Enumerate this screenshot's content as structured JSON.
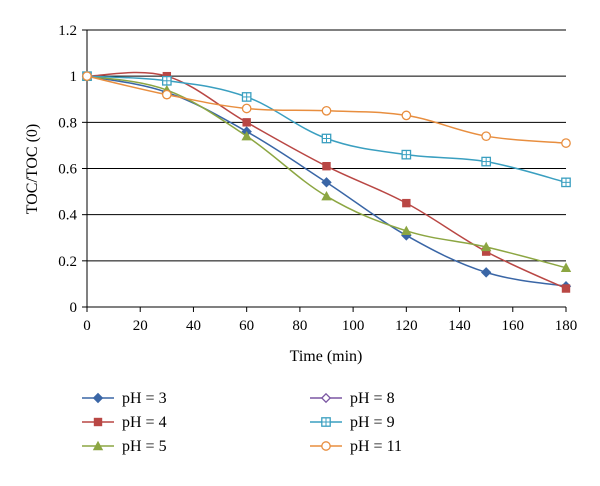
{
  "chart_data": {
    "type": "line",
    "title": "",
    "xlabel": "Time (min)",
    "ylabel": "TOC/TOC (0)",
    "xlim": [
      0,
      180
    ],
    "ylim": [
      0,
      1.2
    ],
    "xticks": [
      0,
      20,
      40,
      60,
      80,
      100,
      120,
      140,
      160,
      180
    ],
    "yticks": [
      0,
      0.2,
      0.4,
      0.6,
      0.8,
      1,
      1.2
    ],
    "xtick_labels": [
      "0",
      "20",
      "40",
      "60",
      "80",
      "100",
      "120",
      "140",
      "160",
      "180"
    ],
    "ytick_labels": [
      "0",
      "0.2",
      "0.4",
      "0.6",
      "0.8",
      "1",
      "1.2"
    ],
    "grid": "horizontal",
    "legend_position": "bottom",
    "series": [
      {
        "name": "pH = 3",
        "color": "#3a66a6",
        "marker": "diamond",
        "x": [
          0,
          30,
          60,
          90,
          120,
          150,
          180
        ],
        "y": [
          1.0,
          0.93,
          0.76,
          0.54,
          0.31,
          0.15,
          0.09
        ]
      },
      {
        "name": "pH = 4",
        "color": "#b94744",
        "marker": "square",
        "x": [
          0,
          30,
          60,
          90,
          120,
          150,
          180
        ],
        "y": [
          1.0,
          1.0,
          0.8,
          0.61,
          0.45,
          0.24,
          0.08
        ]
      },
      {
        "name": "pH = 5",
        "color": "#8ca642",
        "marker": "triangle",
        "x": [
          0,
          30,
          60,
          90,
          120,
          150,
          180
        ],
        "y": [
          1.0,
          0.94,
          0.74,
          0.48,
          0.33,
          0.26,
          0.17
        ]
      },
      {
        "name": "pH = 8",
        "color": "#7b57a3",
        "marker": "diamond-open",
        "x": [],
        "y": []
      },
      {
        "name": "pH = 9",
        "color": "#3a9fc0",
        "marker": "square-open",
        "x": [
          0,
          30,
          60,
          90,
          120,
          150,
          180
        ],
        "y": [
          1.0,
          0.98,
          0.91,
          0.73,
          0.66,
          0.63,
          0.54
        ]
      },
      {
        "name": "pH = 11",
        "color": "#e88e3f",
        "marker": "circle-open",
        "x": [
          0,
          30,
          60,
          90,
          120,
          150,
          180
        ],
        "y": [
          1.0,
          0.92,
          0.86,
          0.85,
          0.83,
          0.74,
          0.71
        ]
      }
    ]
  }
}
